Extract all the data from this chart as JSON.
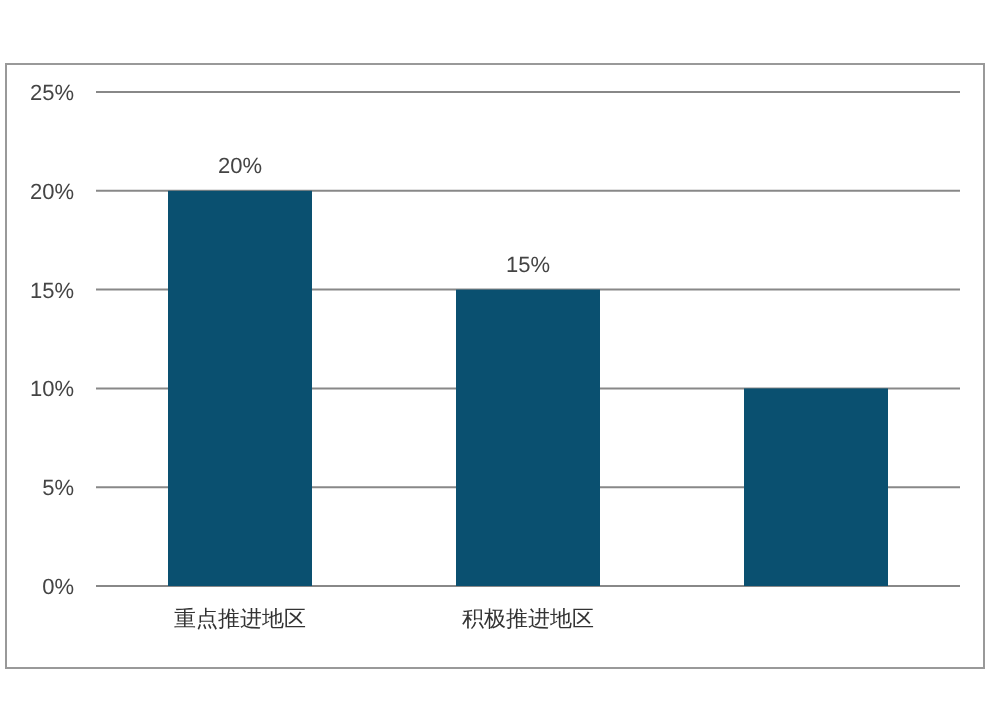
{
  "chart_data": {
    "type": "bar",
    "categories": [
      "重点推进地区",
      "积极推进地区",
      null
    ],
    "values": [
      20,
      15,
      10
    ],
    "value_labels": [
      "20%",
      "15%",
      null
    ],
    "color": "#0a5070",
    "ylim": [
      0,
      25
    ],
    "yticks": [
      {
        "value": 0,
        "label": "0%"
      },
      {
        "value": 5,
        "label": "5%"
      },
      {
        "value": 10,
        "label": "10%"
      },
      {
        "value": 15,
        "label": "15%"
      },
      {
        "value": 20,
        "label": "20%"
      },
      {
        "value": 25,
        "label": "25%"
      }
    ],
    "grid": "y"
  }
}
